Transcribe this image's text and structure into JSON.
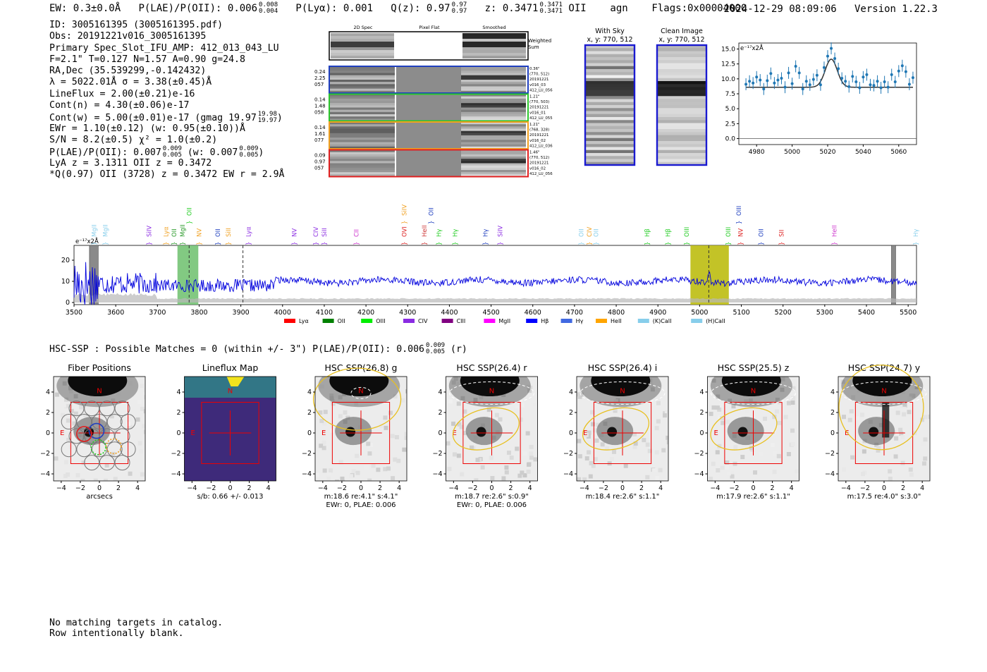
{
  "header": {
    "ew": "EW: 0.3±0.0Å",
    "plae": "P(LAE)/P(OII): 0.006",
    "plae_hi": "0.008",
    "plae_lo": "0.004",
    "plya": "P(Lyα): 0.001",
    "qz": "Q(z): 0.97",
    "qz_hi": "0.97",
    "qz_lo": "0.97",
    "z": "z: 0.3471",
    "z_hi": "0.3471",
    "z_lo": "0.3471",
    "line": "OII",
    "agn": "agn",
    "flags": "Flags:0x00004000",
    "timestamp": "2024-12-29 08:09:06",
    "version": "Version 1.22.3"
  },
  "info": {
    "id": "ID: 3005161395 (3005161395.pdf)",
    "obs": "Obs: 20191221v016_3005161395",
    "primary": "Primary Spec_Slot_IFU_AMP: 412_013_043_LU",
    "params": "F=2.1\"  T=0.127  N=1.57  A=0.90  g=24.8",
    "radec": "RA,Dec (35.539299,-0.142432)",
    "lambda": "λ = 5022.01Å  σ = 3.38(±0.45)Å",
    "lineflux": "LineFlux = 2.00(±0.21)e-16",
    "contn": "Cont(n) = 4.30(±0.06)e-17",
    "contw": "Cont(w) = 5.00(±0.01)e-17 (gmag 19.97",
    "contw_hi": "19.98",
    "contw_lo": "19.97",
    "contw_close": ")",
    "ewr": "EWr = 1.10(±0.12) (w: 0.95(±0.10))Å",
    "sn": "S/N = 8.2(±0.5)  χ² = 1.0(±0.2)",
    "plae": "P(LAE)/P(OII): 0.007",
    "plae_hi": "0.009",
    "plae_lo": "0.005",
    "plae_w": "(w: 0.007",
    "plae_w_hi": "0.009",
    "plae_w_lo": "0.005",
    "plae_w_close": ")",
    "lya": "LyA z = 3.1311  OII z = 0.3472",
    "best": "*Q(0.97) OII (3728) z = 0.3472  EW r = 2.9Å"
  },
  "stamps": {
    "col_headers": [
      "2D Spec",
      "Pixel Flat",
      "Smoothed"
    ],
    "weighted_label": [
      "Weighted",
      "Sum"
    ],
    "rows": [
      {
        "color": "#1f3fbf",
        "left": [
          "0.24",
          "2.25",
          "057"
        ],
        "right": [
          "0.36\"",
          "(770, 512)",
          "20191221",
          "v016_03",
          "412_LU_056"
        ],
        "seed": 11
      },
      {
        "color": "#2cc62c",
        "left": [
          "0.14",
          "1.48",
          "058"
        ],
        "right": [
          "1.21\"",
          "(770, 503)",
          "20191221",
          "v016_01",
          "412_LU_055"
        ],
        "seed": 23
      },
      {
        "color": "#f0a020",
        "left": [
          "0.14",
          "1.61",
          "077"
        ],
        "right": [
          "1.21\"",
          "(768, 328)",
          "20191221",
          "v016_02",
          "412_LU_036"
        ],
        "seed": 37
      },
      {
        "color": "#e02020",
        "left": [
          "0.09",
          "0.97",
          "057"
        ],
        "right": [
          "1.46\"",
          "(770, 512)",
          "20191221",
          "v016_02",
          "412_LU_056"
        ],
        "seed": 51
      }
    ]
  },
  "sky": {
    "panels": [
      {
        "title": "With Sky",
        "sub": "x, y: 770, 512"
      },
      {
        "title": "Clean Image",
        "sub": "x, y: 770, 512"
      }
    ]
  },
  "fit_chart": {
    "type": "scatter",
    "ylabel": "e⁻¹⁷x2Å",
    "xlim": [
      4970,
      5070
    ],
    "ylim": [
      -1,
      16
    ],
    "xticks": [
      4980,
      5000,
      5020,
      5040,
      5060
    ],
    "yticks": [
      0.0,
      2.5,
      5.0,
      7.5,
      10.0,
      12.5,
      15.0
    ],
    "x": [
      4974,
      4976,
      4978,
      4980,
      4982,
      4984,
      4986,
      4988,
      4990,
      4992,
      4994,
      4996,
      4998,
      5000,
      5002,
      5004,
      5006,
      5008,
      5010,
      5012,
      5014,
      5016,
      5018,
      5020,
      5022,
      5024,
      5026,
      5028,
      5030,
      5032,
      5034,
      5036,
      5038,
      5040,
      5042,
      5044,
      5046,
      5048,
      5050,
      5052,
      5054,
      5056,
      5058,
      5060,
      5062,
      5064,
      5066,
      5068
    ],
    "y": [
      9.1,
      9.6,
      9.3,
      10.3,
      9.8,
      8.3,
      9.7,
      10.9,
      9.3,
      9.8,
      10.1,
      8.6,
      11.0,
      9.2,
      12.1,
      11.0,
      8.3,
      9.6,
      9.0,
      9.9,
      10.6,
      9.0,
      11.9,
      13.8,
      15.1,
      13.4,
      11.7,
      10.1,
      9.6,
      8.7,
      10.4,
      9.5,
      8.5,
      10.3,
      10.7,
      9.0,
      8.9,
      9.6,
      8.5,
      9.5,
      8.6,
      10.7,
      9.5,
      11.3,
      12.2,
      11.2,
      9.1,
      10.2
    ],
    "err": 1.0,
    "model": {
      "continuum": 8.6,
      "amplitude": 4.7,
      "center": 5022.0,
      "sigma": 3.38
    },
    "point_color": "#1f77b4"
  },
  "spectrum_chart": {
    "type": "line",
    "ylabel": "e⁻¹⁷x2Å",
    "xlim": [
      3500,
      5520
    ],
    "ylim": [
      -1,
      27
    ],
    "xticks": [
      3500,
      3600,
      3700,
      3800,
      3900,
      4000,
      4100,
      4200,
      4300,
      4400,
      4500,
      4600,
      4700,
      4800,
      4900,
      5000,
      5100,
      5200,
      5300,
      5400,
      5500
    ],
    "yticks": [
      0,
      10,
      20
    ],
    "line_color": "#0000dd",
    "green_band": [
      3748,
      3798
    ],
    "green_line": 3776,
    "yellow_band": [
      4978,
      5070
    ],
    "yellow_line": 5022,
    "gray_line": 3905,
    "bad_bands": [
      [
        3537,
        3558
      ],
      [
        5460,
        5470
      ]
    ],
    "line_labels": [
      {
        "name": "MgII",
        "x": 3548,
        "color": "#87ceeb",
        "level": 1
      },
      {
        "name": "MgII",
        "x": 3575,
        "color": "#87ceeb",
        "level": 1
      },
      {
        "name": "SiIV",
        "x": 3680,
        "color": "#8a2be2",
        "level": 1
      },
      {
        "name": "Lyα",
        "x": 3721,
        "color": "#f0a020",
        "level": 1
      },
      {
        "name": "OII",
        "x": 3740,
        "color": "#2a9a2a",
        "level": 1
      },
      {
        "name": "MgII",
        "x": 3760,
        "color": "#2a9a2a",
        "level": 1
      },
      {
        "name": "OII",
        "x": 3776,
        "color": "#22cc22",
        "level": 0
      },
      {
        "name": "NV",
        "x": 3800,
        "color": "#f0a020",
        "level": 1
      },
      {
        "name": "OII",
        "x": 3845,
        "color": "#1f3fbf",
        "level": 1
      },
      {
        "name": "SiII",
        "x": 3870,
        "color": "#f0a020",
        "level": 1
      },
      {
        "name": "Lyα",
        "x": 3918,
        "color": "#8a2be2",
        "level": 1
      },
      {
        "name": "NV",
        "x": 4028,
        "color": "#8a2be2",
        "level": 1
      },
      {
        "name": "CIV",
        "x": 4080,
        "color": "#8a2be2",
        "level": 1
      },
      {
        "name": "SiII",
        "x": 4100,
        "color": "#8a2be2",
        "level": 1
      },
      {
        "name": "CII",
        "x": 4177,
        "color": "#cc33cc",
        "level": 1
      },
      {
        "name": "SiIV",
        "x": 4292,
        "color": "#f0a020",
        "level": 0
      },
      {
        "name": "OVI",
        "x": 4292,
        "color": "#dd2222",
        "level": 1
      },
      {
        "name": "HeII",
        "x": 4340,
        "color": "#cc3333",
        "level": 1
      },
      {
        "name": "OII",
        "x": 4356,
        "color": "#1f3fbf",
        "level": 0
      },
      {
        "name": "Hγ",
        "x": 4375,
        "color": "#22cc22",
        "level": 1
      },
      {
        "name": "Hγ",
        "x": 4414,
        "color": "#22cc22",
        "level": 1
      },
      {
        "name": "Hγ",
        "x": 4486,
        "color": "#1f3fbf",
        "level": 1
      },
      {
        "name": "SiIV",
        "x": 4522,
        "color": "#8a2be2",
        "level": 1
      },
      {
        "name": "OII",
        "x": 4716,
        "color": "#87ceeb",
        "level": 1
      },
      {
        "name": "CIV",
        "x": 4736,
        "color": "#f0a020",
        "level": 1
      },
      {
        "name": "OII",
        "x": 4752,
        "color": "#87ceeb",
        "level": 1
      },
      {
        "name": "Hβ",
        "x": 4874,
        "color": "#22cc22",
        "level": 1
      },
      {
        "name": "Hβ",
        "x": 4924,
        "color": "#22cc22",
        "level": 1
      },
      {
        "name": "OIII",
        "x": 4969,
        "color": "#22cc22",
        "level": 1
      },
      {
        "name": "OIII",
        "x": 5069,
        "color": "#22cc22",
        "level": 1
      },
      {
        "name": "OIII",
        "x": 5094,
        "color": "#1f3fbf",
        "level": 0
      },
      {
        "name": "NV",
        "x": 5098,
        "color": "#dd2222",
        "level": 1
      },
      {
        "name": "OII",
        "x": 5147,
        "color": "#1f3fbf",
        "level": 1
      },
      {
        "name": "SII",
        "x": 5196,
        "color": "#dd2222",
        "level": 1
      },
      {
        "name": "HeII",
        "x": 5323,
        "color": "#cc33cc",
        "level": 1
      },
      {
        "name": "Hγ",
        "x": 5518,
        "color": "#87ceeb",
        "level": 1
      }
    ],
    "legend": [
      {
        "name": "Lyα",
        "color": "#ff0000"
      },
      {
        "name": "OII",
        "color": "#008000"
      },
      {
        "name": "OIII",
        "color": "#00ee00"
      },
      {
        "name": "CIV",
        "color": "#8a2be2"
      },
      {
        "name": "CIII",
        "color": "#800080"
      },
      {
        "name": "MgII",
        "color": "#ff00ff"
      },
      {
        "name": "Hβ",
        "color": "#0000ff"
      },
      {
        "name": "Hγ",
        "color": "#4169e1"
      },
      {
        "name": "HeII",
        "color": "#ffa500"
      },
      {
        "name": "(K)CaII",
        "color": "#87ceeb"
      },
      {
        "name": "(H)CaII",
        "color": "#87ceeb"
      }
    ]
  },
  "hsc": {
    "title": "HSC-SSP : Possible Matches = 0 (within +/- 3\")  P(LAE)/P(OII): 0.006",
    "title_hi": "0.009",
    "title_lo": "0.005",
    "title_close": "(r)",
    "ticks": [
      -4,
      -2,
      0,
      2,
      4
    ],
    "north": "N",
    "east": "E",
    "panels": [
      {
        "title": "Fiber Positions",
        "lines": [
          "arcsecs"
        ],
        "kind": "fiber"
      },
      {
        "title": "Lineflux Map",
        "lines": [
          "s/b: 0.66 +/- 0.013"
        ],
        "kind": "flux"
      },
      {
        "title": "HSC SSP(26.8) g",
        "lines": [
          "m:18.6  re:4.1\"  s:4.1\"",
          "EWr: 0, PLAE: 0.006"
        ],
        "kind": "g"
      },
      {
        "title": "HSC SSP(26.4) r",
        "lines": [
          "m:18.7  re:2.6\"  s:0.9\"",
          "EWr: 0, PLAE: 0.006"
        ],
        "kind": "r"
      },
      {
        "title": "HSC SSP(26.4) i",
        "lines": [
          "m:18.4  re:2.6\"  s:1.1\""
        ],
        "kind": "i"
      },
      {
        "title": "HSC SSP(25.5) z",
        "lines": [
          "m:17.9  re:2.6\"  s:1.1\""
        ],
        "kind": "z"
      },
      {
        "title": "HSC SSP(24.7) y",
        "lines": [
          "m:17.5  re:4.0\"  s:3.0\""
        ],
        "kind": "y"
      }
    ]
  },
  "footer": {
    "line1": "No matching targets in catalog.",
    "line2": "Row intentionally blank."
  }
}
